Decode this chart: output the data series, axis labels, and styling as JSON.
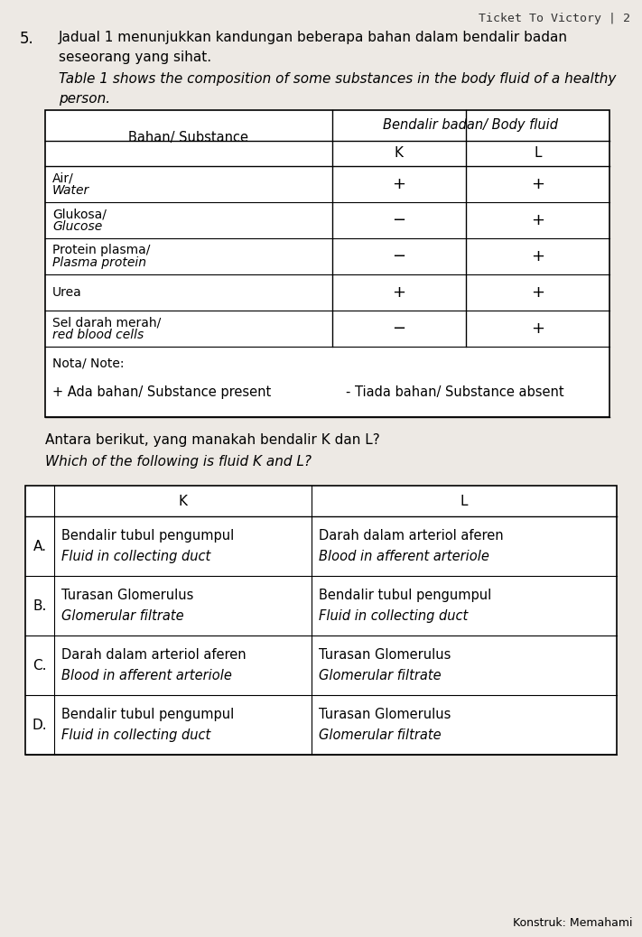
{
  "bg_color": "#ede9e4",
  "header_text": "Ticket To Victory | 2",
  "question_number": "5.",
  "malay_line1": "Jadual 1 menunjukkan kandungan beberapa bahan dalam bendalir badan",
  "malay_line2": "seseorang yang sihat.",
  "english_line1": "Table 1 shows the composition of some substances in the body fluid of a healthy",
  "english_line2": "person.",
  "table1_col1_header": "Bahan/ Substance",
  "table1_col2_header": "Bendalir badan/ Body fluid",
  "table1_K": "K",
  "table1_L": "L",
  "table1_rows": [
    {
      "sub1": "Air/ Water",
      "sub2": "",
      "K": "+",
      "L": "+"
    },
    {
      "sub1": "Glukosa/ Glucose",
      "sub2": "",
      "K": "−",
      "L": "+"
    },
    {
      "sub1": "Protein plasma/ Plasma protein",
      "sub2": "",
      "K": "−",
      "L": "+"
    },
    {
      "sub1": "Urea",
      "sub2": "",
      "K": "+",
      "L": "+"
    },
    {
      "sub1": "Sel darah merah/ red blood cells",
      "sub2": "",
      "K": "−",
      "L": "+"
    }
  ],
  "nota_label": "Nota/ Note:",
  "nota_plus_text": "+ Ada bahan/ Substance present",
  "nota_minus_text": "- Tiada bahan/ Substance absent",
  "q_malay": "Antara berikut, yang manakah bendalir K dan L?",
  "q_english": "Which of the following is fluid K and L?",
  "mcq_rows": [
    {
      "opt": "A.",
      "K1": "Bendalir tubul pengumpul",
      "K2": "Fluid in collecting duct",
      "L1": "Darah dalam arteriol aferen",
      "L2": "Blood in afferent arteriole"
    },
    {
      "opt": "B.",
      "K1": "Turasan Glomerulus",
      "K2": "Glomerular filtrate",
      "L1": "Bendalir tubul pengumpul",
      "L2": "Fluid in collecting duct"
    },
    {
      "opt": "C.",
      "K1": "Darah dalam arteriol aferen",
      "K2": "Blood in afferent arteriole",
      "L1": "Turasan Glomerulus",
      "L2": "Glomerular filtrate"
    },
    {
      "opt": "D.",
      "K1": "Bendalir tubul pengumpul",
      "K2": "Fluid in collecting duct",
      "L1": "Turasan Glomerulus",
      "L2": "Glomerular filtrate"
    }
  ],
  "konstruk": "Konstruk: Memahami"
}
